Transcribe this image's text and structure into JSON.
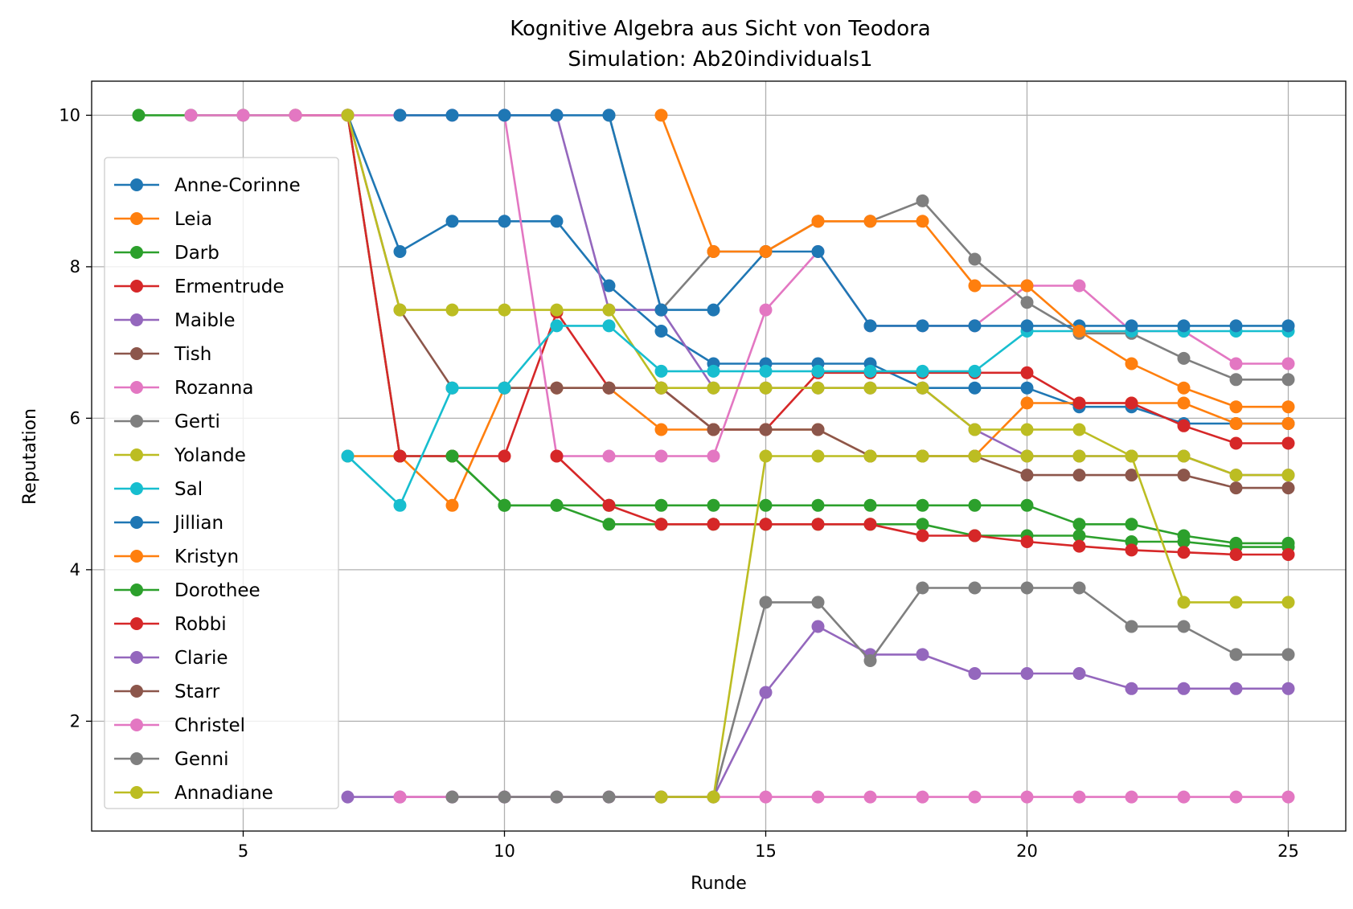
{
  "chart_data": {
    "type": "line",
    "title": "Kognitive Algebra aus Sicht von Teodora",
    "subtitle": "Simulation: Ab20individuals1",
    "xlabel": "Runde",
    "ylabel": "Reputation",
    "xlim": [
      2.1,
      26.1
    ],
    "ylim": [
      0.55,
      10.45
    ],
    "xticks": [
      5,
      10,
      15,
      20,
      25
    ],
    "yticks": [
      2,
      4,
      6,
      8,
      10
    ],
    "grid": true,
    "legend_position": "left",
    "series": [
      {
        "name": "Anne-Corinne",
        "color": "#1f77b4",
        "x": [
          7,
          8,
          9,
          10,
          11,
          12,
          13,
          14,
          15,
          16,
          17,
          18,
          19,
          20,
          21,
          22,
          23,
          24,
          25
        ],
        "y": [
          10,
          8.2,
          8.6,
          8.6,
          8.6,
          7.75,
          7.15,
          6.72,
          6.72,
          6.72,
          6.72,
          6.4,
          6.4,
          6.4,
          6.15,
          6.15,
          5.93,
          5.93,
          5.93
        ]
      },
      {
        "name": "Leia",
        "color": "#ff7f0e",
        "x": [
          7,
          8,
          9,
          10,
          11,
          12,
          13,
          14,
          15,
          16,
          17,
          18,
          19,
          20,
          21,
          22,
          23,
          24,
          25
        ],
        "y": [
          5.5,
          5.5,
          4.85,
          6.4,
          6.4,
          6.4,
          5.85,
          5.85,
          5.85,
          5.85,
          5.5,
          5.5,
          5.5,
          6.2,
          6.2,
          6.2,
          6.2,
          5.93,
          5.93
        ]
      },
      {
        "name": "Darb",
        "color": "#2ca02c",
        "x": [
          3,
          4,
          5,
          6,
          7,
          8,
          9,
          10,
          11,
          12,
          13,
          14,
          15,
          16,
          17,
          18,
          19,
          20,
          21,
          22,
          23,
          24,
          25
        ],
        "y": [
          10,
          10,
          10,
          10,
          10,
          5.5,
          5.5,
          4.85,
          4.85,
          4.85,
          4.85,
          4.85,
          4.85,
          4.85,
          4.85,
          4.85,
          4.85,
          4.85,
          4.6,
          4.6,
          4.45,
          4.35,
          4.35
        ]
      },
      {
        "name": "Ermentrude",
        "color": "#d62728",
        "x": [
          6,
          7,
          8,
          9,
          10,
          11,
          12,
          13,
          14,
          15,
          16,
          17,
          18,
          19,
          20,
          21,
          22,
          23,
          24,
          25
        ],
        "y": [
          10,
          10,
          5.5,
          5.5,
          5.5,
          7.4,
          6.4,
          6.4,
          5.85,
          5.85,
          6.6,
          6.6,
          6.6,
          6.6,
          6.6,
          6.2,
          6.2,
          5.9,
          5.67,
          5.67
        ]
      },
      {
        "name": "Maible",
        "color": "#9467bd",
        "x": [
          10,
          11,
          12,
          13,
          14,
          15,
          16,
          17,
          18,
          19,
          20,
          21,
          22,
          23,
          24,
          25
        ],
        "y": [
          10,
          10,
          7.43,
          7.43,
          6.4,
          6.4,
          6.4,
          6.4,
          6.4,
          5.85,
          5.5,
          5.5,
          5.5,
          5.5,
          5.25,
          5.25
        ]
      },
      {
        "name": "Tish",
        "color": "#8c564b",
        "x": [
          7,
          8,
          9,
          10,
          11,
          12,
          13,
          14,
          15,
          16,
          17,
          18,
          19,
          20,
          21,
          22,
          23,
          24,
          25
        ],
        "y": [
          10,
          7.43,
          6.4,
          6.4,
          6.4,
          6.4,
          6.4,
          5.85,
          5.85,
          5.85,
          5.5,
          5.5,
          5.5,
          5.25,
          5.25,
          5.25,
          5.25,
          5.08,
          5.08
        ]
      },
      {
        "name": "Rozanna",
        "color": "#e377c2",
        "x": [
          4,
          5,
          6,
          7,
          8,
          9,
          10,
          11,
          12,
          13,
          14,
          15,
          16,
          17,
          18,
          19,
          20,
          21,
          22,
          23,
          24,
          25
        ],
        "y": [
          10,
          10,
          10,
          10,
          10,
          10,
          10,
          5.5,
          5.5,
          5.5,
          5.5,
          7.43,
          8.2,
          7.22,
          7.22,
          7.22,
          7.75,
          7.75,
          7.15,
          7.15,
          6.72,
          6.72
        ]
      },
      {
        "name": "Gerti",
        "color": "#7f7f7f",
        "x": [
          12,
          13,
          14,
          15,
          16,
          17,
          18,
          19,
          20,
          21,
          22,
          23,
          24,
          25
        ],
        "y": [
          10,
          7.43,
          8.2,
          8.2,
          8.6,
          8.6,
          8.87,
          8.1,
          7.53,
          7.12,
          7.12,
          6.79,
          6.51,
          6.51
        ]
      },
      {
        "name": "Yolande",
        "color": "#bcbd22",
        "x": [
          7,
          8,
          9,
          10,
          11,
          12,
          13,
          14,
          15,
          16,
          17,
          18,
          19,
          20,
          21,
          22,
          23,
          24,
          25
        ],
        "y": [
          10,
          7.43,
          7.43,
          7.43,
          7.43,
          7.43,
          6.4,
          6.4,
          6.4,
          6.4,
          6.4,
          6.4,
          5.85,
          5.85,
          5.85,
          5.5,
          5.5,
          5.25,
          5.25
        ]
      },
      {
        "name": "Sal",
        "color": "#17becf",
        "x": [
          7,
          8,
          9,
          10,
          11,
          12,
          13,
          14,
          15,
          16,
          17,
          18,
          19,
          20,
          21,
          22,
          23,
          24,
          25
        ],
        "y": [
          5.5,
          4.85,
          6.4,
          6.4,
          7.22,
          7.22,
          6.62,
          6.62,
          6.62,
          6.62,
          6.62,
          6.62,
          6.62,
          7.15,
          7.15,
          7.15,
          7.15,
          7.15,
          7.15
        ]
      },
      {
        "name": "Jillian",
        "color": "#1f77b4",
        "x": [
          8,
          9,
          10,
          11,
          12,
          13,
          14,
          15,
          16,
          17,
          18,
          19,
          20,
          21,
          22,
          23,
          24,
          25
        ],
        "y": [
          10,
          10,
          10,
          10,
          10,
          7.43,
          7.43,
          8.2,
          8.2,
          7.22,
          7.22,
          7.22,
          7.22,
          7.22,
          7.22,
          7.22,
          7.22,
          7.22
        ]
      },
      {
        "name": "Kristyn",
        "color": "#ff7f0e",
        "x": [
          13,
          14,
          15,
          16,
          17,
          18,
          19,
          20,
          21,
          22,
          23,
          24,
          25
        ],
        "y": [
          10,
          8.2,
          8.2,
          8.6,
          8.6,
          8.6,
          7.75,
          7.75,
          7.15,
          6.72,
          6.4,
          6.15,
          6.15
        ]
      },
      {
        "name": "Dorothee",
        "color": "#2ca02c",
        "x": [
          9,
          10,
          11,
          12,
          13,
          14,
          15,
          16,
          17,
          18,
          19,
          20,
          21,
          22,
          23,
          24,
          25
        ],
        "y": [
          5.5,
          4.85,
          4.85,
          4.6,
          4.6,
          4.6,
          4.6,
          4.6,
          4.6,
          4.6,
          4.45,
          4.45,
          4.45,
          4.37,
          4.37,
          4.3,
          4.3
        ]
      },
      {
        "name": "Robbi",
        "color": "#d62728",
        "x": [
          11,
          12,
          13,
          14,
          15,
          16,
          17,
          18,
          19,
          20,
          21,
          22,
          23,
          24,
          25
        ],
        "y": [
          5.5,
          4.85,
          4.6,
          4.6,
          4.6,
          4.6,
          4.6,
          4.45,
          4.45,
          4.37,
          4.31,
          4.26,
          4.23,
          4.2,
          4.2
        ]
      },
      {
        "name": "Clarie",
        "color": "#9467bd",
        "x": [
          7,
          8,
          9,
          10,
          11,
          12,
          13,
          14,
          15,
          16,
          17,
          18,
          19,
          20,
          21,
          22,
          23,
          24,
          25
        ],
        "y": [
          1,
          1,
          1,
          1,
          1,
          1,
          1,
          1,
          2.38,
          3.25,
          2.88,
          2.88,
          2.63,
          2.63,
          2.63,
          2.43,
          2.43,
          2.43,
          2.43
        ]
      },
      {
        "name": "Starr",
        "color": "#8c564b",
        "x": [],
        "y": []
      },
      {
        "name": "Christel",
        "color": "#e377c2",
        "x": [
          8,
          9,
          10,
          11,
          12,
          13,
          14,
          15,
          16,
          17,
          18,
          19,
          20,
          21,
          22,
          23,
          24,
          25
        ],
        "y": [
          1,
          1,
          1,
          1,
          1,
          1,
          1,
          1,
          1,
          1,
          1,
          1,
          1,
          1,
          1,
          1,
          1,
          1
        ]
      },
      {
        "name": "Genni",
        "color": "#7f7f7f",
        "x": [
          9,
          10,
          11,
          12,
          13,
          14,
          15,
          16,
          17,
          18,
          19,
          20,
          21,
          22,
          23,
          24,
          25
        ],
        "y": [
          1,
          1,
          1,
          1,
          1,
          1,
          3.57,
          3.57,
          2.8,
          3.76,
          3.76,
          3.76,
          3.76,
          3.25,
          3.25,
          2.88,
          2.88
        ]
      },
      {
        "name": "Annadiane",
        "color": "#bcbd22",
        "x": [
          13,
          14,
          15,
          16,
          17,
          18,
          19,
          20,
          21,
          22,
          23,
          24,
          25
        ],
        "y": [
          1,
          1,
          5.5,
          5.5,
          5.5,
          5.5,
          5.5,
          5.5,
          5.5,
          5.5,
          3.57,
          3.57,
          3.57
        ]
      }
    ]
  }
}
